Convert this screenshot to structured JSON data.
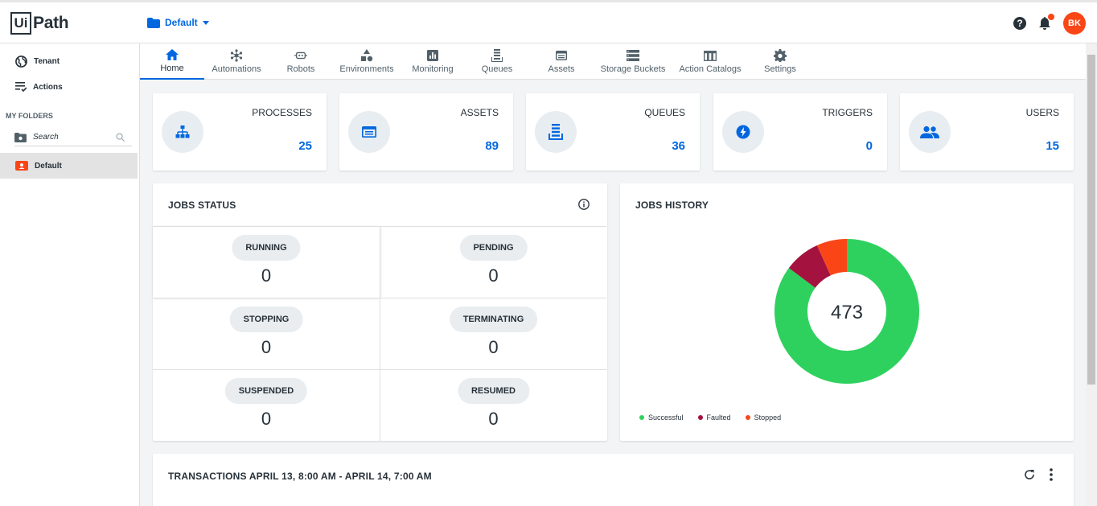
{
  "app": {
    "logo_mark": "Ui",
    "logo_text": "Path"
  },
  "header": {
    "folder_label": "Default",
    "avatar_initials": "BK",
    "accent_color": "#0067df",
    "brand_color": "#fa4616"
  },
  "sidebar": {
    "items": [
      {
        "label": "Tenant",
        "icon": "globe-icon"
      },
      {
        "label": "Actions",
        "icon": "actions-list-icon"
      }
    ],
    "section_title": "MY FOLDERS",
    "search_placeholder": "Search",
    "folders": [
      {
        "label": "Default",
        "selected": true
      }
    ]
  },
  "tabs": [
    {
      "label": "Home",
      "icon": "home-icon",
      "active": true
    },
    {
      "label": "Automations",
      "icon": "automations-icon"
    },
    {
      "label": "Robots",
      "icon": "robot-icon"
    },
    {
      "label": "Environments",
      "icon": "environments-icon"
    },
    {
      "label": "Monitoring",
      "icon": "monitoring-icon"
    },
    {
      "label": "Queues",
      "icon": "queues-icon"
    },
    {
      "label": "Assets",
      "icon": "assets-icon"
    },
    {
      "label": "Storage Buckets",
      "icon": "storage-buckets-icon"
    },
    {
      "label": "Action Catalogs",
      "icon": "action-catalogs-icon"
    },
    {
      "label": "Settings",
      "icon": "gear-icon"
    }
  ],
  "stats": [
    {
      "label": "PROCESSES",
      "value": "25",
      "icon": "processes-icon"
    },
    {
      "label": "ASSETS",
      "value": "89",
      "icon": "assets-icon"
    },
    {
      "label": "QUEUES",
      "value": "36",
      "icon": "queues-icon"
    },
    {
      "label": "TRIGGERS",
      "value": "0",
      "icon": "triggers-icon"
    },
    {
      "label": "USERS",
      "value": "15",
      "icon": "users-icon"
    }
  ],
  "jobs_status": {
    "title": "JOBS STATUS",
    "cells": [
      {
        "label": "RUNNING",
        "value": "0"
      },
      {
        "label": "PENDING",
        "value": "0"
      },
      {
        "label": "STOPPING",
        "value": "0"
      },
      {
        "label": "TERMINATING",
        "value": "0"
      },
      {
        "label": "SUSPENDED",
        "value": "0"
      },
      {
        "label": "RESUMED",
        "value": "0"
      }
    ]
  },
  "jobs_history": {
    "title": "JOBS HISTORY",
    "total": "473",
    "legend": [
      {
        "label": "Successful",
        "color": "#2fd15e"
      },
      {
        "label": "Faulted",
        "color": "#a4123f"
      },
      {
        "label": "Stopped",
        "color": "#fa4616"
      }
    ]
  },
  "chart_data": {
    "type": "pie",
    "title": "JOBS HISTORY",
    "categories": [
      "Successful",
      "Faulted",
      "Stopped"
    ],
    "values": [
      403,
      38,
      32
    ],
    "colors": [
      "#2fd15e",
      "#a4123f",
      "#fa4616"
    ],
    "center_label": "473",
    "legend": "bottom-left"
  },
  "transactions": {
    "title": "TRANSACTIONS APRIL 13, 8:00 AM - APRIL 14, 7:00 AM"
  }
}
